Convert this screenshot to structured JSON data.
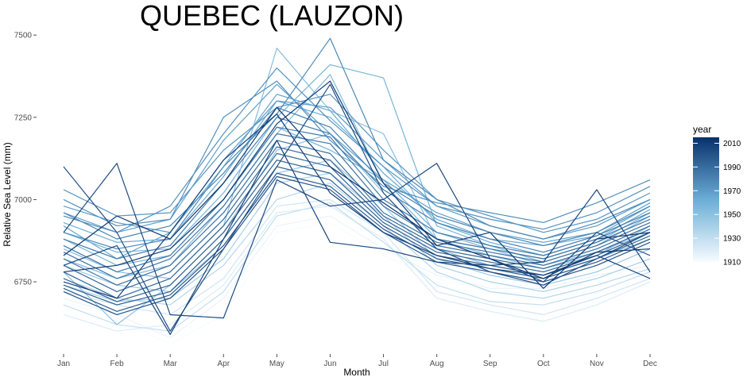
{
  "chart_data": {
    "type": "line",
    "title": "QUEBEC (LAUZON)",
    "xlabel": "Month",
    "ylabel": "Relative Sea Level (mm)",
    "categories": [
      "Jan",
      "Feb",
      "Mar",
      "Apr",
      "May",
      "Jun",
      "Jul",
      "Aug",
      "Sep",
      "Oct",
      "Nov",
      "Dec"
    ],
    "yticks": [
      6750,
      7000,
      7250,
      7500
    ],
    "ylim": [
      6545,
      7510
    ],
    "grid": false,
    "legend": {
      "title": "year",
      "placement": "right",
      "type": "colorbar",
      "labels": [
        1910,
        1930,
        1950,
        1970,
        1990,
        2010
      ],
      "range": [
        1910,
        2015
      ],
      "color_low": "#f7fbff",
      "color_high": "#08306b"
    },
    "series": [
      {
        "year": 1910,
        "values": [
          6690,
          6640,
          6560,
          6650,
          6900,
          6930,
          6830,
          6760,
          6720,
          6710,
          6760,
          6800
        ]
      },
      {
        "year": 1915,
        "values": [
          6700,
          6650,
          6580,
          6700,
          6920,
          6950,
          6850,
          6770,
          6730,
          6730,
          6770,
          6800
        ]
      },
      {
        "year": 1920,
        "values": [
          6650,
          6600,
          6620,
          6740,
          6960,
          6980,
          6880,
          6700,
          6660,
          6630,
          6680,
          6750
        ]
      },
      {
        "year": 1925,
        "values": [
          6720,
          6680,
          6650,
          6760,
          6980,
          7000,
          6900,
          6720,
          6680,
          6650,
          6700,
          6760
        ]
      },
      {
        "year": 1930,
        "values": [
          6680,
          6620,
          6600,
          6720,
          6950,
          6990,
          6870,
          6740,
          6690,
          6680,
          6720,
          6780
        ]
      },
      {
        "year": 1935,
        "values": [
          6760,
          6700,
          6680,
          6800,
          7000,
          7050,
          6920,
          6780,
          6720,
          6700,
          6740,
          6790
        ]
      },
      {
        "year": 1940,
        "values": [
          6740,
          6690,
          6700,
          6820,
          7050,
          7080,
          6950,
          6800,
          6750,
          6720,
          6760,
          6820
        ]
      },
      {
        "year": 1945,
        "values": [
          6800,
          6740,
          6720,
          6860,
          7080,
          7120,
          6980,
          6820,
          6770,
          6740,
          6780,
          6850
        ]
      },
      {
        "year": 1950,
        "values": [
          6780,
          6620,
          6740,
          6900,
          7150,
          7200,
          7020,
          6850,
          6800,
          6770,
          6820,
          6880
        ]
      },
      {
        "year": 1952,
        "values": [
          6850,
          6780,
          6760,
          6920,
          7460,
          7270,
          7200,
          6880,
          6850,
          6800,
          6840,
          6900
        ]
      },
      {
        "year": 1955,
        "values": [
          6820,
          6760,
          6800,
          6980,
          7200,
          7380,
          7050,
          6880,
          6830,
          6790,
          6830,
          6920
        ]
      },
      {
        "year": 1958,
        "values": [
          6900,
          6840,
          6850,
          7020,
          7250,
          7410,
          7370,
          6920,
          6860,
          6810,
          6860,
          6950
        ]
      },
      {
        "year": 1960,
        "values": [
          6880,
          6800,
          6830,
          7000,
          7220,
          7150,
          7060,
          6900,
          6850,
          6820,
          6870,
          6960
        ]
      },
      {
        "year": 1963,
        "values": [
          6930,
          6870,
          6880,
          7070,
          7300,
          7250,
          7100,
          6930,
          6870,
          6830,
          6880,
          6970
        ]
      },
      {
        "year": 1965,
        "values": [
          6920,
          6820,
          6900,
          7100,
          7320,
          7270,
          7080,
          6940,
          6880,
          6860,
          6890,
          6980
        ]
      },
      {
        "year": 1968,
        "values": [
          6960,
          6900,
          6940,
          7180,
          7350,
          7200,
          7060,
          6960,
          6900,
          6870,
          6900,
          6990
        ]
      },
      {
        "year": 1970,
        "values": [
          6980,
          6930,
          6900,
          7120,
          7300,
          7280,
          7120,
          6980,
          6920,
          6880,
          6920,
          7000
        ]
      },
      {
        "year": 1972,
        "values": [
          7030,
          6950,
          6960,
          7150,
          7280,
          7320,
          7150,
          7000,
          6950,
          6900,
          6940,
          7020
        ]
      },
      {
        "year": 1974,
        "values": [
          6950,
          6900,
          6980,
          7200,
          7400,
          7240,
          7100,
          6980,
          6940,
          6910,
          6960,
          7040
        ]
      },
      {
        "year": 1976,
        "values": [
          7000,
          6920,
          6940,
          7250,
          7360,
          7180,
          7040,
          6990,
          6960,
          6930,
          6990,
          7060
        ]
      },
      {
        "year": 1978,
        "values": [
          6900,
          6850,
          6880,
          7100,
          7260,
          7490,
          7120,
          7000,
          6920,
          6880,
          6930,
          7000
        ]
      },
      {
        "year": 1980,
        "values": [
          6960,
          6880,
          6920,
          7080,
          7280,
          7220,
          7050,
          6950,
          6900,
          6860,
          6900,
          6980
        ]
      },
      {
        "year": 1982,
        "values": [
          6880,
          6820,
          6860,
          7050,
          7250,
          7200,
          7030,
          6930,
          6880,
          6840,
          6890,
          6960
        ]
      },
      {
        "year": 1984,
        "values": [
          6860,
          6780,
          6830,
          7000,
          7220,
          7190,
          7000,
          6900,
          6860,
          6830,
          6880,
          6950
        ]
      },
      {
        "year": 1986,
        "values": [
          6840,
          6760,
          6820,
          6980,
          7200,
          7170,
          6980,
          6880,
          6850,
          6820,
          6870,
          6940
        ]
      },
      {
        "year": 1988,
        "values": [
          6820,
          6740,
          6800,
          6960,
          7180,
          7140,
          6960,
          6870,
          6840,
          6810,
          6860,
          6930
        ]
      },
      {
        "year": 1990,
        "values": [
          6800,
          6720,
          6780,
          6940,
          7160,
          7120,
          6950,
          6860,
          6830,
          6800,
          6850,
          6920
        ]
      },
      {
        "year": 1992,
        "values": [
          6780,
          6700,
          6760,
          6920,
          7140,
          7100,
          6940,
          6850,
          6820,
          6790,
          6840,
          6910
        ]
      },
      {
        "year": 1994,
        "values": [
          6760,
          6690,
          6740,
          6900,
          7120,
          7080,
          6930,
          6840,
          6810,
          6780,
          6830,
          6900
        ]
      },
      {
        "year": 1996,
        "values": [
          6740,
          6680,
          6720,
          6880,
          7100,
          7060,
          6920,
          6830,
          6800,
          6770,
          6820,
          6890
        ]
      },
      {
        "year": 1998,
        "values": [
          6730,
          6660,
          6710,
          6860,
          7080,
          7040,
          6910,
          6820,
          6790,
          6760,
          6810,
          6880
        ]
      },
      {
        "year": 2000,
        "values": [
          6720,
          6650,
          6700,
          6850,
          7070,
          7030,
          6900,
          6810,
          6780,
          6750,
          6800,
          6870
        ]
      },
      {
        "year": 2002,
        "values": [
          7100,
          6900,
          6600,
          6850,
          7100,
          7350,
          7020,
          6850,
          6780,
          6740,
          6820,
          6900
        ]
      },
      {
        "year": 2004,
        "values": [
          6900,
          7110,
          6650,
          6640,
          7060,
          6980,
          7000,
          7110,
          6820,
          6750,
          6900,
          6830
        ]
      },
      {
        "year": 2006,
        "values": [
          6800,
          6860,
          6590,
          6880,
          7180,
          6870,
          6850,
          6810,
          6800,
          6810,
          7030,
          6780
        ]
      },
      {
        "year": 2008,
        "values": [
          6750,
          6700,
          6900,
          7120,
          7260,
          7020,
          6900,
          6830,
          6790,
          6770,
          6830,
          6760
        ]
      },
      {
        "year": 2010,
        "values": [
          6780,
          6800,
          6850,
          7000,
          7230,
          7360,
          7050,
          6860,
          6900,
          6730,
          6880,
          6900
        ]
      },
      {
        "year": 2013,
        "values": [
          6830,
          6950,
          6880,
          7050,
          7280,
          7100,
          6990,
          6880,
          6820,
          6760,
          6840,
          6850
        ]
      }
    ]
  }
}
